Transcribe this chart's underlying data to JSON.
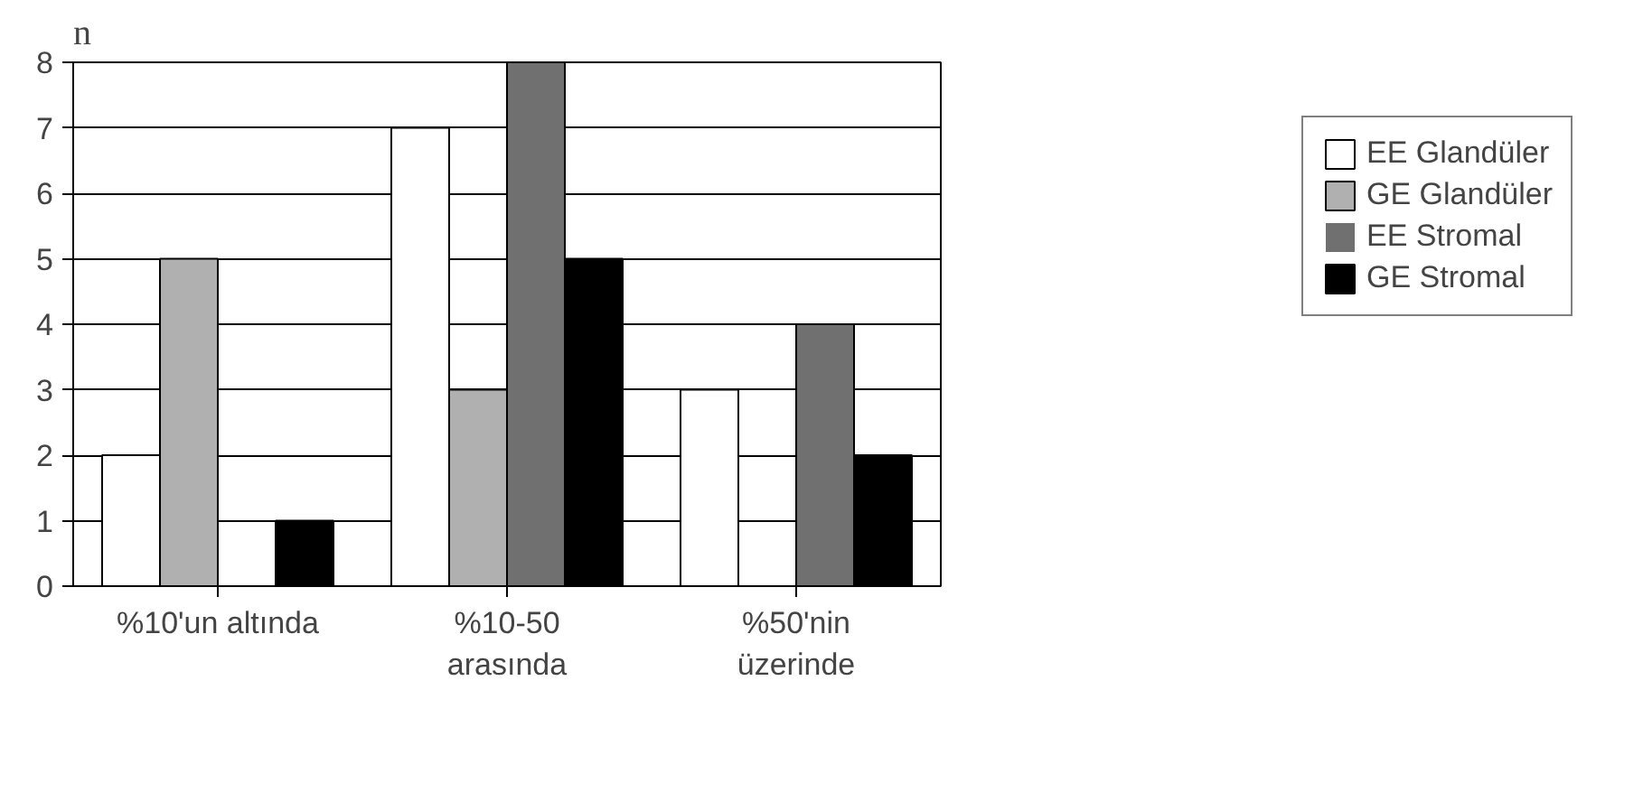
{
  "chart_data": {
    "type": "bar",
    "ylabel": "n",
    "categories": [
      "%10'un altında",
      "%10-50\narasında",
      "%50'nin\nüzerinde"
    ],
    "series": [
      {
        "name": "EE Glandüler",
        "color": "#ffffff",
        "values": [
          2,
          7,
          3
        ]
      },
      {
        "name": "GE Glandüler",
        "color": "#b0b0b0",
        "values": [
          5,
          3,
          0
        ]
      },
      {
        "name": "EE Stromal",
        "color": "#707070",
        "values": [
          0,
          8,
          4
        ]
      },
      {
        "name": "GE Stromal",
        "color": "#000000",
        "values": [
          1,
          5,
          2
        ]
      }
    ],
    "ylim": [
      0,
      8
    ],
    "yticks": [
      0,
      1,
      2,
      3,
      4,
      5,
      6,
      7,
      8
    ],
    "grid": "y",
    "legend": "right"
  }
}
